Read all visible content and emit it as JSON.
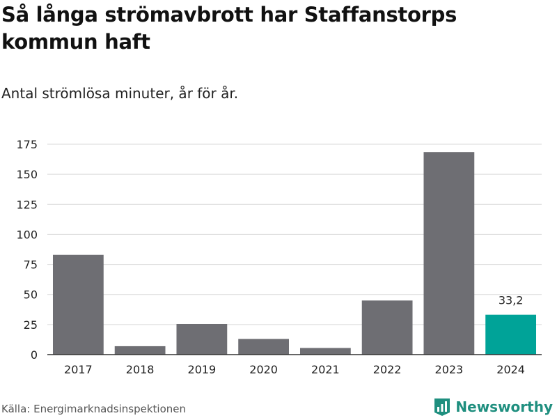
{
  "header": {
    "title": "Så långa strömavbrott har Staffanstorps kommun haft",
    "subtitle": "Antal strömlösa minuter, år för år."
  },
  "footer": {
    "source": "Källa: Energimarknadsinspektionen",
    "brand": "Newsworthy"
  },
  "colors": {
    "bar_default": "#6e6e73",
    "bar_highlight": "#00a398",
    "brand": "#1f8f7f"
  },
  "chart_data": {
    "type": "bar",
    "categories": [
      "2017",
      "2018",
      "2019",
      "2020",
      "2021",
      "2022",
      "2023",
      "2024"
    ],
    "values": [
      83,
      7,
      25.5,
      13,
      5.5,
      45,
      168.5,
      33.2
    ],
    "highlight_index": 7,
    "data_labels": [
      {
        "index": 7,
        "text": "33,2"
      }
    ],
    "yticks": [
      0,
      25,
      50,
      75,
      100,
      125,
      150,
      175
    ],
    "ylim": [
      0,
      175
    ],
    "grid": true,
    "xlabel": "",
    "ylabel": ""
  }
}
